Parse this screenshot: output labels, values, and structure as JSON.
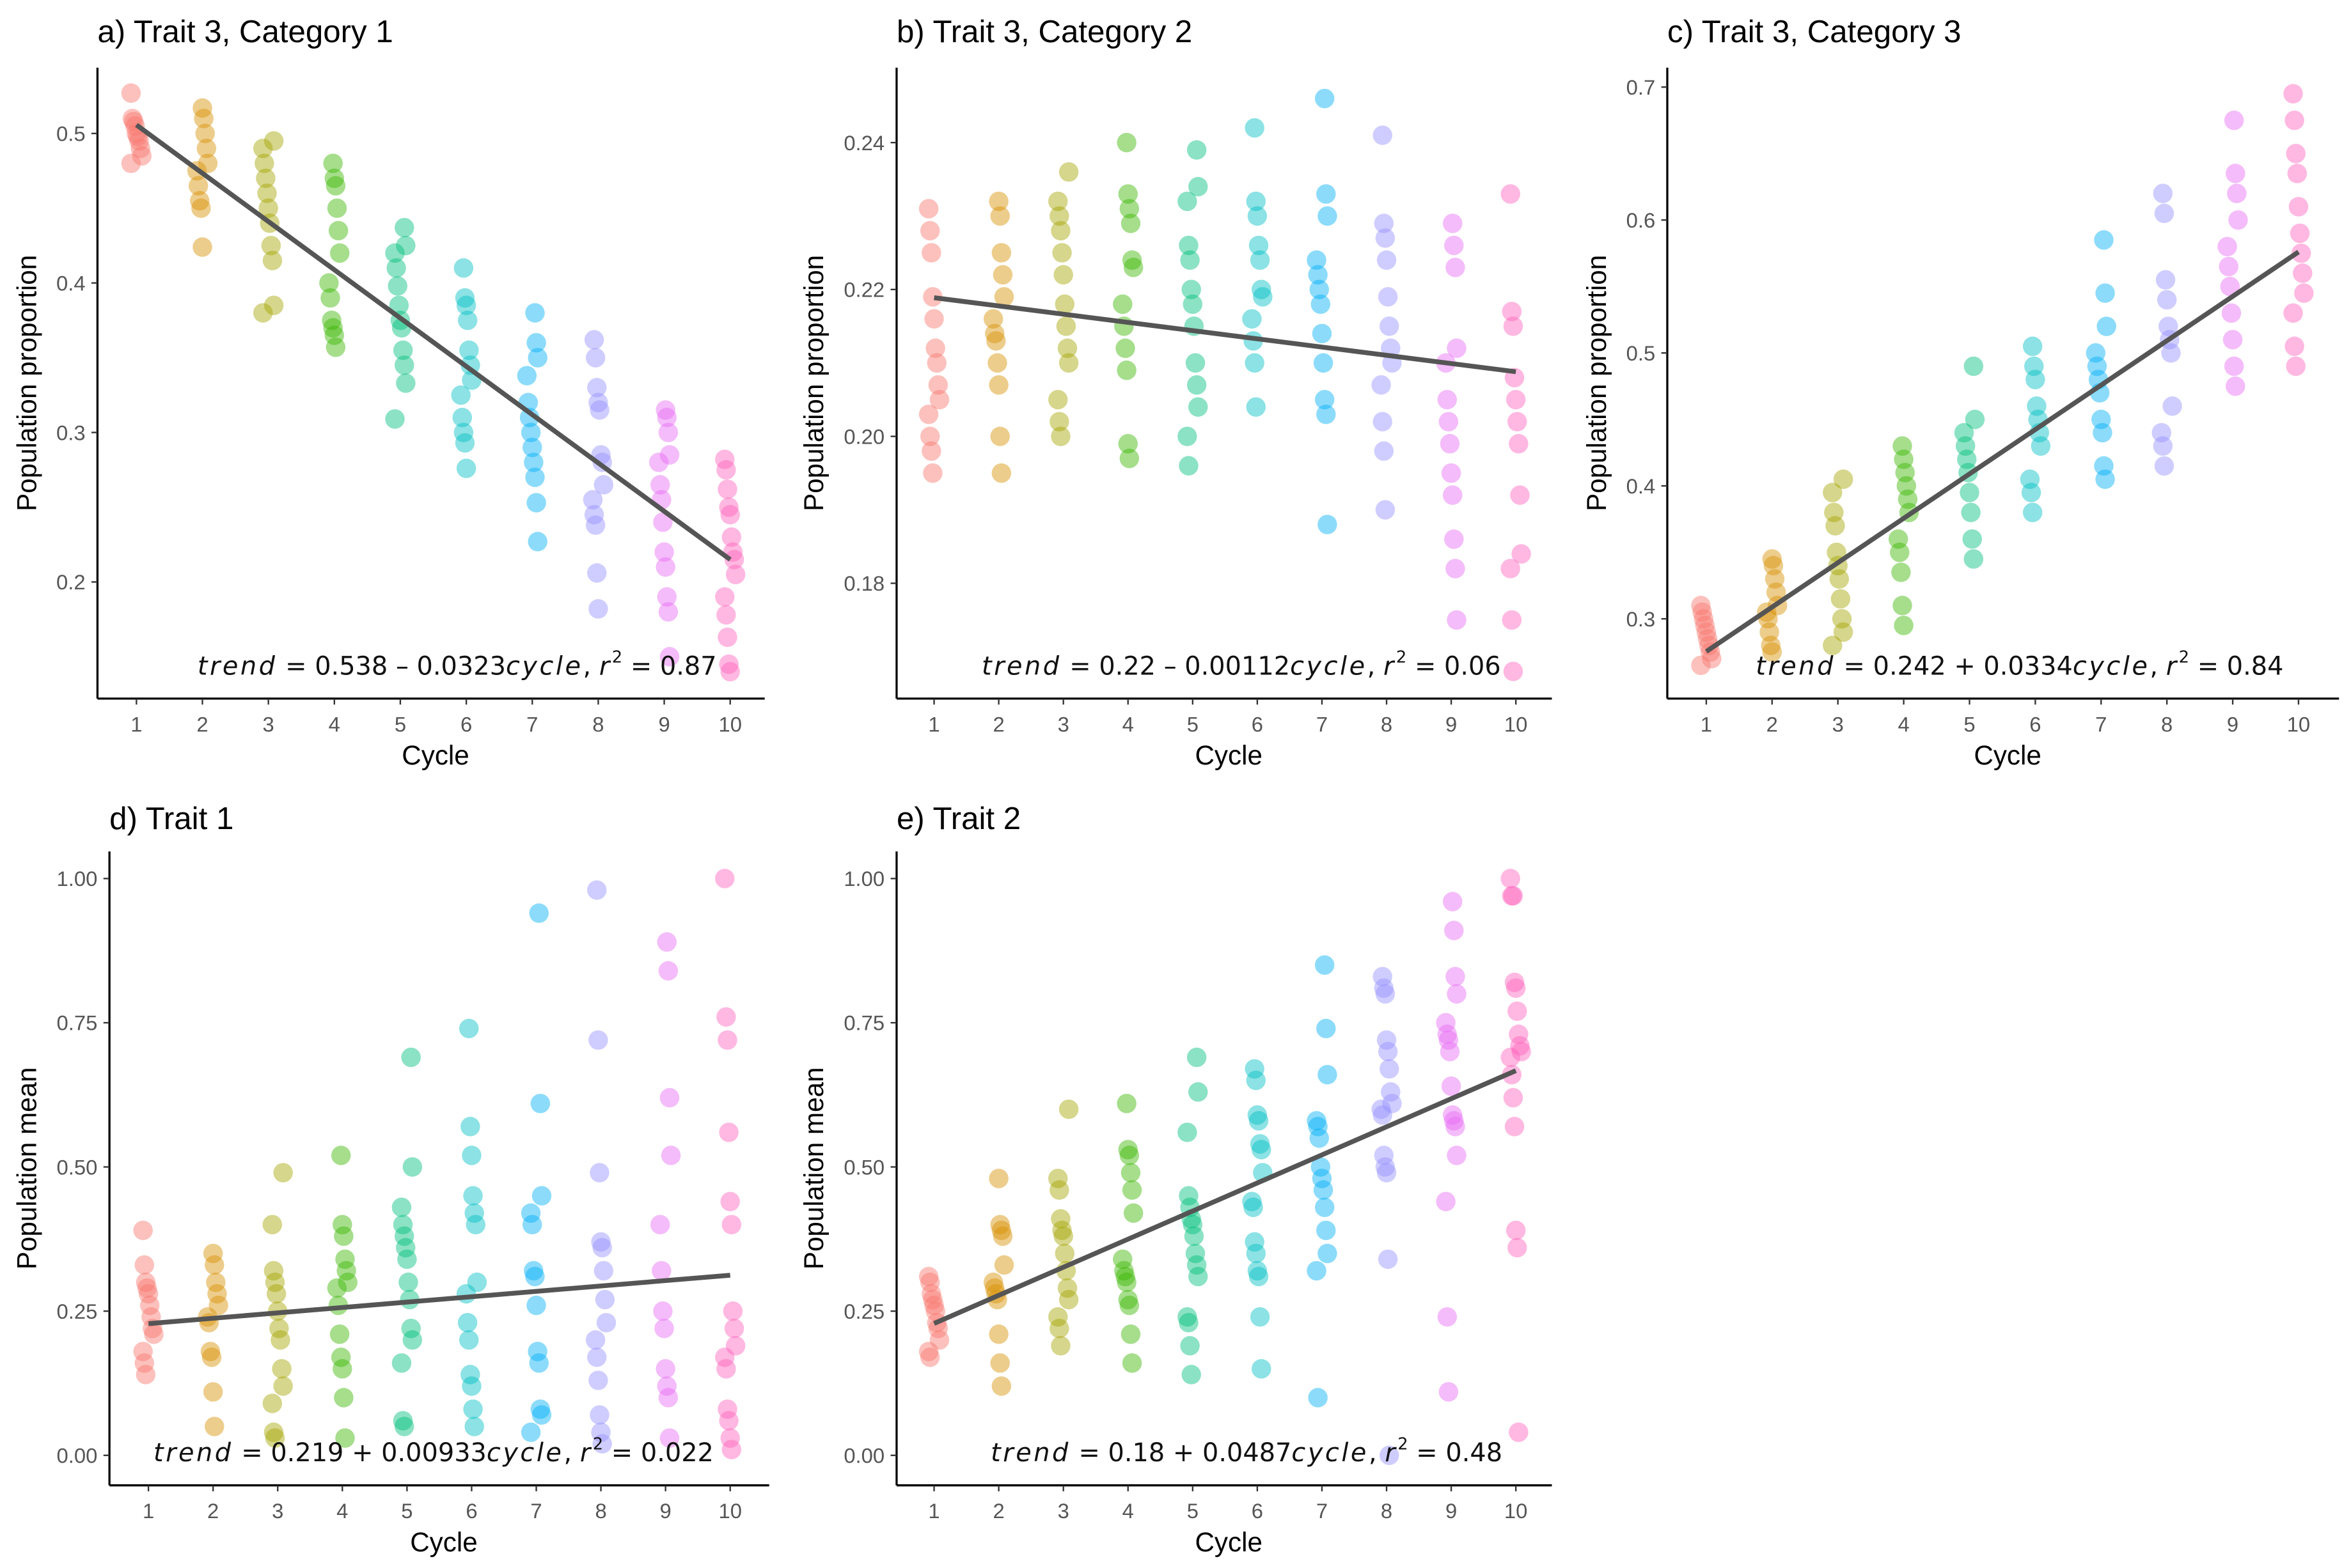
{
  "chart_data": [
    {
      "type": "scatter",
      "title": "a) Trait 3, Category 1",
      "xlabel": "Cycle",
      "ylabel": "Population proportion",
      "xticks": [
        "1",
        "2",
        "3",
        "4",
        "5",
        "6",
        "7",
        "8",
        "9",
        "10"
      ],
      "yticks": [
        {
          "v": 0.2,
          "label": "0.2"
        },
        {
          "v": 0.3,
          "label": "0.3"
        },
        {
          "v": 0.4,
          "label": "0.4"
        },
        {
          "v": 0.5,
          "label": "0.5"
        }
      ],
      "ylim": [
        0.122,
        0.544
      ],
      "grid": false,
      "trend": {
        "intercept": 0.538,
        "slope": -0.0323,
        "intercept_text": "0.538",
        "op": "–",
        "slope_text": "0.0323",
        "r2_text": "0.87",
        "lhs": "trend",
        "var": "cycle",
        "r": "r",
        "sup": "2"
      },
      "points": [
        [
          0.527,
          0.51,
          0.508,
          0.505,
          0.5,
          0.498,
          0.495,
          0.49,
          0.485,
          0.48
        ],
        [
          0.517,
          0.51,
          0.5,
          0.49,
          0.48,
          0.475,
          0.465,
          0.455,
          0.45,
          0.424
        ],
        [
          0.495,
          0.49,
          0.48,
          0.47,
          0.46,
          0.45,
          0.44,
          0.425,
          0.415,
          0.385,
          0.38
        ],
        [
          0.48,
          0.47,
          0.465,
          0.45,
          0.435,
          0.42,
          0.4,
          0.39,
          0.375,
          0.37,
          0.365,
          0.357
        ],
        [
          0.437,
          0.425,
          0.42,
          0.41,
          0.398,
          0.385,
          0.375,
          0.37,
          0.355,
          0.345,
          0.333,
          0.309
        ],
        [
          0.41,
          0.39,
          0.385,
          0.375,
          0.355,
          0.345,
          0.335,
          0.325,
          0.31,
          0.3,
          0.293,
          0.276
        ],
        [
          0.38,
          0.36,
          0.35,
          0.338,
          0.32,
          0.31,
          0.3,
          0.29,
          0.28,
          0.27,
          0.253,
          0.227
        ],
        [
          0.362,
          0.35,
          0.33,
          0.32,
          0.315,
          0.285,
          0.28,
          0.265,
          0.255,
          0.245,
          0.238,
          0.206,
          0.182
        ],
        [
          0.315,
          0.31,
          0.3,
          0.285,
          0.28,
          0.265,
          0.255,
          0.24,
          0.22,
          0.21,
          0.19,
          0.18,
          0.15
        ],
        [
          0.282,
          0.275,
          0.262,
          0.25,
          0.245,
          0.23,
          0.22,
          0.215,
          0.205,
          0.19,
          0.178,
          0.163,
          0.145,
          0.14
        ]
      ]
    },
    {
      "type": "scatter",
      "title": "b) Trait 3, Category 2",
      "xlabel": "Cycle",
      "ylabel": "Population proportion",
      "xticks": [
        "1",
        "2",
        "3",
        "4",
        "5",
        "6",
        "7",
        "8",
        "9",
        "10"
      ],
      "yticks": [
        {
          "v": 0.18,
          "label": "0.18"
        },
        {
          "v": 0.2,
          "label": "0.20"
        },
        {
          "v": 0.22,
          "label": "0.22"
        },
        {
          "v": 0.24,
          "label": "0.24"
        }
      ],
      "ylim": [
        0.1643,
        0.2502
      ],
      "grid": false,
      "trend": {
        "intercept": 0.22,
        "slope": -0.00112,
        "intercept_text": "0.22",
        "op": "–",
        "slope_text": "0.00112",
        "r2_text": "0.06",
        "lhs": "trend",
        "var": "cycle",
        "r": "r",
        "sup": "2"
      },
      "points": [
        [
          0.231,
          0.228,
          0.225,
          0.219,
          0.216,
          0.212,
          0.21,
          0.207,
          0.205,
          0.203,
          0.2,
          0.198,
          0.195
        ],
        [
          0.232,
          0.23,
          0.225,
          0.222,
          0.219,
          0.216,
          0.214,
          0.213,
          0.21,
          0.207,
          0.2,
          0.195
        ],
        [
          0.236,
          0.232,
          0.23,
          0.228,
          0.225,
          0.222,
          0.218,
          0.215,
          0.212,
          0.21,
          0.205,
          0.202,
          0.2
        ],
        [
          0.24,
          0.233,
          0.231,
          0.229,
          0.224,
          0.223,
          0.218,
          0.215,
          0.212,
          0.209,
          0.199,
          0.197
        ],
        [
          0.239,
          0.234,
          0.232,
          0.226,
          0.224,
          0.22,
          0.218,
          0.215,
          0.21,
          0.207,
          0.204,
          0.2,
          0.196
        ],
        [
          0.242,
          0.232,
          0.23,
          0.226,
          0.224,
          0.22,
          0.219,
          0.216,
          0.213,
          0.21,
          0.204
        ],
        [
          0.246,
          0.233,
          0.23,
          0.224,
          0.222,
          0.22,
          0.218,
          0.214,
          0.21,
          0.205,
          0.203,
          0.188
        ],
        [
          0.241,
          0.229,
          0.227,
          0.224,
          0.219,
          0.215,
          0.212,
          0.21,
          0.207,
          0.202,
          0.198,
          0.19
        ],
        [
          0.229,
          0.226,
          0.223,
          0.212,
          0.21,
          0.205,
          0.202,
          0.199,
          0.195,
          0.192,
          0.186,
          0.182,
          0.175
        ],
        [
          0.233,
          0.217,
          0.215,
          0.208,
          0.205,
          0.202,
          0.199,
          0.192,
          0.184,
          0.182,
          0.175,
          0.168
        ]
      ]
    },
    {
      "type": "scatter",
      "title": "c) Trait 3, Category 3",
      "xlabel": "Cycle",
      "ylabel": "Population proportion",
      "xticks": [
        "1",
        "2",
        "3",
        "4",
        "5",
        "6",
        "7",
        "8",
        "9",
        "10"
      ],
      "yticks": [
        {
          "v": 0.3,
          "label": "0.3"
        },
        {
          "v": 0.4,
          "label": "0.4"
        },
        {
          "v": 0.5,
          "label": "0.5"
        },
        {
          "v": 0.6,
          "label": "0.6"
        },
        {
          "v": 0.7,
          "label": "0.7"
        }
      ],
      "ylim": [
        0.24,
        0.7146
      ],
      "grid": false,
      "trend": {
        "intercept": 0.242,
        "slope": 0.0334,
        "intercept_text": "0.242",
        "op": "+",
        "slope_text": "0.0334",
        "r2_text": "0.84",
        "lhs": "trend",
        "var": "cycle",
        "r": "r",
        "sup": "2"
      },
      "points": [
        [
          0.31,
          0.305,
          0.3,
          0.295,
          0.29,
          0.285,
          0.28,
          0.275,
          0.27,
          0.265
        ],
        [
          0.345,
          0.34,
          0.33,
          0.32,
          0.31,
          0.305,
          0.3,
          0.29,
          0.28,
          0.275
        ],
        [
          0.405,
          0.395,
          0.38,
          0.37,
          0.35,
          0.34,
          0.33,
          0.315,
          0.3,
          0.29,
          0.28
        ],
        [
          0.43,
          0.42,
          0.41,
          0.4,
          0.39,
          0.38,
          0.36,
          0.35,
          0.335,
          0.31,
          0.295
        ],
        [
          0.49,
          0.45,
          0.44,
          0.43,
          0.42,
          0.41,
          0.395,
          0.38,
          0.36,
          0.345
        ],
        [
          0.505,
          0.49,
          0.48,
          0.46,
          0.45,
          0.44,
          0.43,
          0.405,
          0.395,
          0.38
        ],
        [
          0.585,
          0.545,
          0.52,
          0.5,
          0.49,
          0.48,
          0.47,
          0.45,
          0.44,
          0.415,
          0.405
        ],
        [
          0.62,
          0.605,
          0.555,
          0.54,
          0.52,
          0.51,
          0.5,
          0.46,
          0.44,
          0.43,
          0.415
        ],
        [
          0.675,
          0.635,
          0.62,
          0.6,
          0.58,
          0.565,
          0.55,
          0.53,
          0.51,
          0.49,
          0.475
        ],
        [
          0.695,
          0.675,
          0.65,
          0.635,
          0.61,
          0.59,
          0.575,
          0.56,
          0.545,
          0.53,
          0.505,
          0.49
        ]
      ]
    },
    {
      "type": "scatter",
      "title": "d) Trait 1",
      "xlabel": "Cycle",
      "ylabel": "Population mean",
      "xticks": [
        "1",
        "2",
        "3",
        "4",
        "5",
        "6",
        "7",
        "8",
        "9",
        "10"
      ],
      "yticks": [
        {
          "v": 0,
          "label": "0.00"
        },
        {
          "v": 0.25,
          "label": "0.25"
        },
        {
          "v": 0.5,
          "label": "0.50"
        },
        {
          "v": 0.75,
          "label": "0.75"
        },
        {
          "v": 1,
          "label": "1.00"
        }
      ],
      "ylim": [
        -0.052,
        1.047
      ],
      "grid": false,
      "trend": {
        "intercept": 0.219,
        "slope": 0.00933,
        "intercept_text": "0.219",
        "op": "+",
        "slope_text": "0.00933",
        "r2_text": "0.022",
        "lhs": "trend",
        "var": "cycle",
        "r": "r",
        "sup": "2"
      },
      "points": [
        [
          0.39,
          0.33,
          0.3,
          0.29,
          0.28,
          0.26,
          0.24,
          0.22,
          0.21,
          0.18,
          0.16,
          0.14
        ],
        [
          0.35,
          0.33,
          0.3,
          0.28,
          0.26,
          0.24,
          0.23,
          0.18,
          0.17,
          0.11,
          0.05
        ],
        [
          0.49,
          0.4,
          0.32,
          0.3,
          0.28,
          0.25,
          0.22,
          0.2,
          0.15,
          0.12,
          0.09,
          0.04,
          0.03
        ],
        [
          0.52,
          0.4,
          0.38,
          0.34,
          0.32,
          0.3,
          0.29,
          0.26,
          0.21,
          0.17,
          0.15,
          0.1,
          0.03
        ],
        [
          0.69,
          0.5,
          0.43,
          0.4,
          0.38,
          0.36,
          0.34,
          0.3,
          0.27,
          0.22,
          0.2,
          0.16,
          0.06,
          0.05
        ],
        [
          0.74,
          0.57,
          0.52,
          0.45,
          0.42,
          0.4,
          0.3,
          0.28,
          0.23,
          0.2,
          0.14,
          0.12,
          0.08,
          0.05
        ],
        [
          0.94,
          0.61,
          0.45,
          0.42,
          0.4,
          0.32,
          0.31,
          0.26,
          0.18,
          0.16,
          0.08,
          0.07,
          0.04
        ],
        [
          0.98,
          0.72,
          0.49,
          0.37,
          0.36,
          0.32,
          0.27,
          0.23,
          0.2,
          0.17,
          0.13,
          0.07,
          0.04,
          0.02
        ],
        [
          0.89,
          0.84,
          0.62,
          0.52,
          0.4,
          0.32,
          0.25,
          0.22,
          0.15,
          0.12,
          0.1,
          0.03
        ],
        [
          1.0,
          0.76,
          0.72,
          0.56,
          0.44,
          0.4,
          0.25,
          0.22,
          0.19,
          0.17,
          0.15,
          0.08,
          0.06,
          0.03,
          0.01
        ]
      ]
    },
    {
      "type": "scatter",
      "title": "e) Trait 2",
      "xlabel": "Cycle",
      "ylabel": "Population mean",
      "xticks": [
        "1",
        "2",
        "3",
        "4",
        "5",
        "6",
        "7",
        "8",
        "9",
        "10"
      ],
      "yticks": [
        {
          "v": 0,
          "label": "0.00"
        },
        {
          "v": 0.25,
          "label": "0.25"
        },
        {
          "v": 0.5,
          "label": "0.50"
        },
        {
          "v": 0.75,
          "label": "0.75"
        },
        {
          "v": 1,
          "label": "1.00"
        }
      ],
      "ylim": [
        -0.052,
        1.047
      ],
      "grid": false,
      "trend": {
        "intercept": 0.18,
        "slope": 0.0487,
        "intercept_text": "0.18",
        "op": "+",
        "slope_text": "0.0487",
        "r2_text": "0.48",
        "lhs": "trend",
        "var": "cycle",
        "r": "r",
        "sup": "2"
      },
      "points": [
        [
          0.31,
          0.3,
          0.28,
          0.27,
          0.26,
          0.25,
          0.23,
          0.22,
          0.2,
          0.18,
          0.17
        ],
        [
          0.48,
          0.4,
          0.39,
          0.38,
          0.33,
          0.3,
          0.29,
          0.28,
          0.27,
          0.21,
          0.16,
          0.12
        ],
        [
          0.6,
          0.48,
          0.46,
          0.41,
          0.39,
          0.38,
          0.35,
          0.32,
          0.29,
          0.27,
          0.24,
          0.22,
          0.19
        ],
        [
          0.61,
          0.53,
          0.52,
          0.49,
          0.46,
          0.42,
          0.34,
          0.32,
          0.31,
          0.3,
          0.27,
          0.26,
          0.21,
          0.16
        ],
        [
          0.69,
          0.63,
          0.56,
          0.45,
          0.43,
          0.41,
          0.4,
          0.38,
          0.35,
          0.33,
          0.31,
          0.24,
          0.23,
          0.19,
          0.14
        ],
        [
          0.67,
          0.65,
          0.59,
          0.58,
          0.54,
          0.53,
          0.49,
          0.44,
          0.43,
          0.37,
          0.35,
          0.32,
          0.31,
          0.24,
          0.15
        ],
        [
          0.85,
          0.74,
          0.66,
          0.58,
          0.57,
          0.55,
          0.5,
          0.48,
          0.46,
          0.43,
          0.39,
          0.35,
          0.32,
          0.1
        ],
        [
          0.83,
          0.81,
          0.8,
          0.72,
          0.7,
          0.67,
          0.63,
          0.61,
          0.6,
          0.59,
          0.52,
          0.5,
          0.49,
          0.34,
          0.0
        ],
        [
          0.96,
          0.91,
          0.83,
          0.8,
          0.75,
          0.73,
          0.72,
          0.7,
          0.64,
          0.59,
          0.58,
          0.57,
          0.52,
          0.44,
          0.24,
          0.11
        ],
        [
          1.0,
          0.97,
          0.97,
          0.82,
          0.81,
          0.77,
          0.73,
          0.71,
          0.7,
          0.69,
          0.66,
          0.62,
          0.57,
          0.39,
          0.36,
          0.04
        ]
      ]
    }
  ],
  "colors": {
    "cycles": [
      "#F8766D",
      "#D89000",
      "#A3A500",
      "#39B600",
      "#00BF7D",
      "#00BFC4",
      "#00B0F6",
      "#9590FF",
      "#E76BF3",
      "#FF62BC"
    ],
    "trend_line": "#555555",
    "axis": "#000000"
  }
}
